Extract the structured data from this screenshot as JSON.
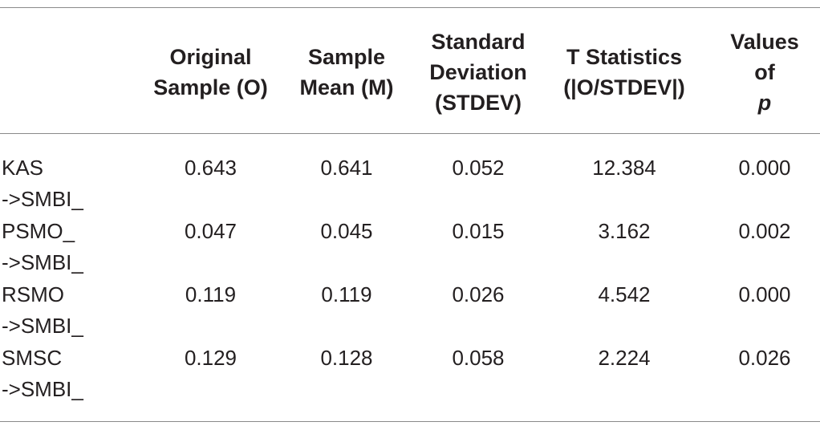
{
  "headers": [
    {
      "lines": [
        "Original",
        "Sample (O)"
      ]
    },
    {
      "lines": [
        "Sample",
        "Mean (M)"
      ]
    },
    {
      "lines": [
        "Standard",
        "Deviation",
        "(STDEV)"
      ]
    },
    {
      "lines": [
        "T Statistics",
        "(|O/STDEV|)"
      ]
    },
    {
      "lines": [
        "Values",
        "of "
      ],
      "italic_suffix": "p"
    }
  ],
  "rows": [
    {
      "label": [
        "KAS",
        "->SMBI_"
      ],
      "values": [
        "0.643",
        "0.641",
        "0.052",
        "12.384",
        "0.000"
      ]
    },
    {
      "label": [
        "PSMO_",
        "->SMBI_"
      ],
      "values": [
        "0.047",
        "0.045",
        "0.015",
        "3.162",
        "0.002"
      ]
    },
    {
      "label": [
        "RSMO",
        "->SMBI_"
      ],
      "values": [
        "0.119",
        "0.119",
        "0.026",
        "4.542",
        "0.000"
      ]
    },
    {
      "label": [
        "SMSC",
        "->SMBI_"
      ],
      "values": [
        "0.129",
        "0.128",
        "0.058",
        "2.224",
        "0.026"
      ]
    }
  ]
}
